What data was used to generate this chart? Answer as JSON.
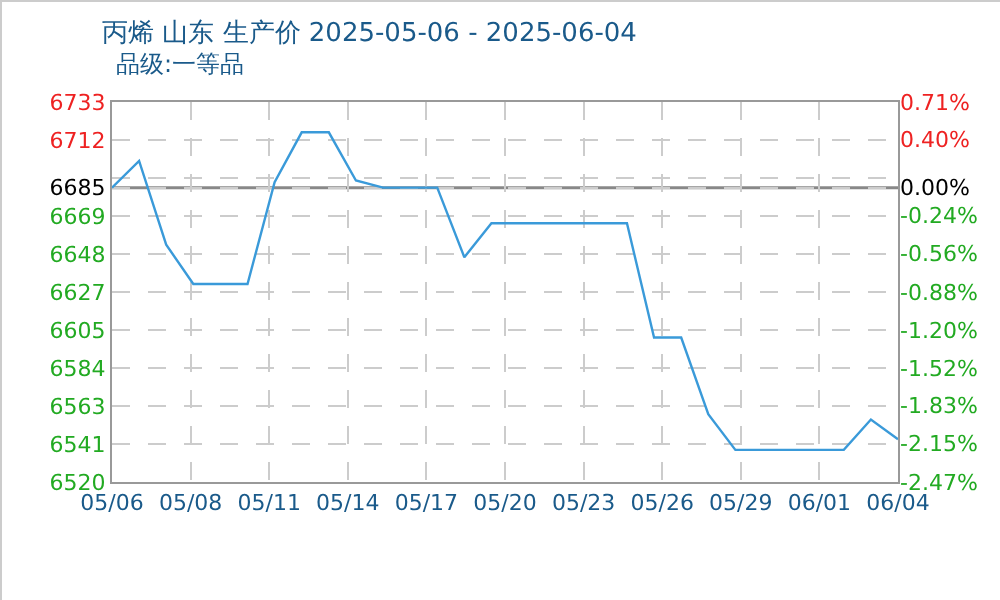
{
  "chart_data": {
    "type": "line",
    "title": "丙烯 山东 生产价 2025-05-06 - 2025-06-04",
    "subtitle": "品级:一等品",
    "x": [
      "2025-05-06",
      "2025-05-07",
      "2025-05-08",
      "2025-05-09",
      "2025-05-10",
      "2025-05-11",
      "2025-05-12",
      "2025-05-13",
      "2025-05-14",
      "2025-05-15",
      "2025-05-16",
      "2025-05-17",
      "2025-05-18",
      "2025-05-19",
      "2025-05-20",
      "2025-05-21",
      "2025-05-22",
      "2025-05-23",
      "2025-05-24",
      "2025-05-25",
      "2025-05-26",
      "2025-05-27",
      "2025-05-28",
      "2025-05-29",
      "2025-05-30",
      "2025-05-31",
      "2025-06-01",
      "2025-06-02",
      "2025-06-03",
      "2025-06-04"
    ],
    "series": [
      {
        "color": "#3a9ad9",
        "values": [
          6685,
          6700,
          6653,
          6631,
          6631,
          6631,
          6688,
          6716,
          6716,
          6689,
          6685,
          6685,
          6685,
          6646,
          6665,
          6665,
          6665,
          6665,
          6665,
          6665,
          6601,
          6601,
          6558,
          6538,
          6538,
          6538,
          6538,
          6538,
          6555,
          6544
        ]
      }
    ],
    "xlim": [
      "2025-05-06",
      "2025-06-04"
    ],
    "xticks": [
      {
        "value": "2025-05-06",
        "label": "05/06"
      },
      {
        "value": "2025-05-08T21:36",
        "label": "05/08"
      },
      {
        "value": "2025-05-11T19:12",
        "label": "05/11"
      },
      {
        "value": "2025-05-14T16:48",
        "label": "05/14"
      },
      {
        "value": "2025-05-17T14:24",
        "label": "05/17"
      },
      {
        "value": "2025-05-20T12:00",
        "label": "05/20"
      },
      {
        "value": "2025-05-23T09:36",
        "label": "05/23"
      },
      {
        "value": "2025-05-26T07:12",
        "label": "05/26"
      },
      {
        "value": "2025-05-29T04:48",
        "label": "05/29"
      },
      {
        "value": "2025-06-01T02:24",
        "label": "06/01"
      },
      {
        "value": "2025-06-04",
        "label": "06/04"
      }
    ],
    "ylim": [
      6520,
      6733
    ],
    "yticks": [
      6520,
      {
        "value": 6541.3,
        "label": "6541"
      },
      {
        "value": 6562.6,
        "label": "6563"
      },
      {
        "value": 6583.9,
        "label": "6584"
      },
      {
        "value": 6605.2,
        "label": "6605"
      },
      {
        "value": 6626.5,
        "label": "6627"
      },
      {
        "value": 6647.8,
        "label": "6648"
      },
      {
        "value": 6669.1,
        "label": "6669"
      },
      6685,
      {
        "value": 6690.4,
        "label": null
      },
      {
        "value": 6711.7,
        "label": "6712"
      },
      6733
    ],
    "y2lim": [
      -2.47,
      0.71
    ],
    "y2ticks": [
      {
        "value": -2.47,
        "label": "-2.47%"
      },
      {
        "value": -2.15,
        "label": "-2.15%"
      },
      {
        "value": -1.83,
        "label": "-1.83%"
      },
      {
        "value": -1.52,
        "label": "-1.52%"
      },
      {
        "value": -1.2,
        "label": "-1.20%"
      },
      {
        "value": -0.88,
        "label": "-0.88%"
      },
      {
        "value": -0.56,
        "label": "-0.56%"
      },
      {
        "value": -0.24,
        "label": "-0.24%"
      },
      {
        "value": 0,
        "label": "0.00%"
      },
      {
        "value": 0.4,
        "label": "0.40%"
      },
      {
        "value": 0.71,
        "label": "0.71%"
      }
    ],
    "ref_lines": [
      {
        "axis": "y",
        "value": 6685,
        "color": "#888888"
      }
    ],
    "grid": true,
    "marker": "none",
    "line_style": "solid"
  }
}
